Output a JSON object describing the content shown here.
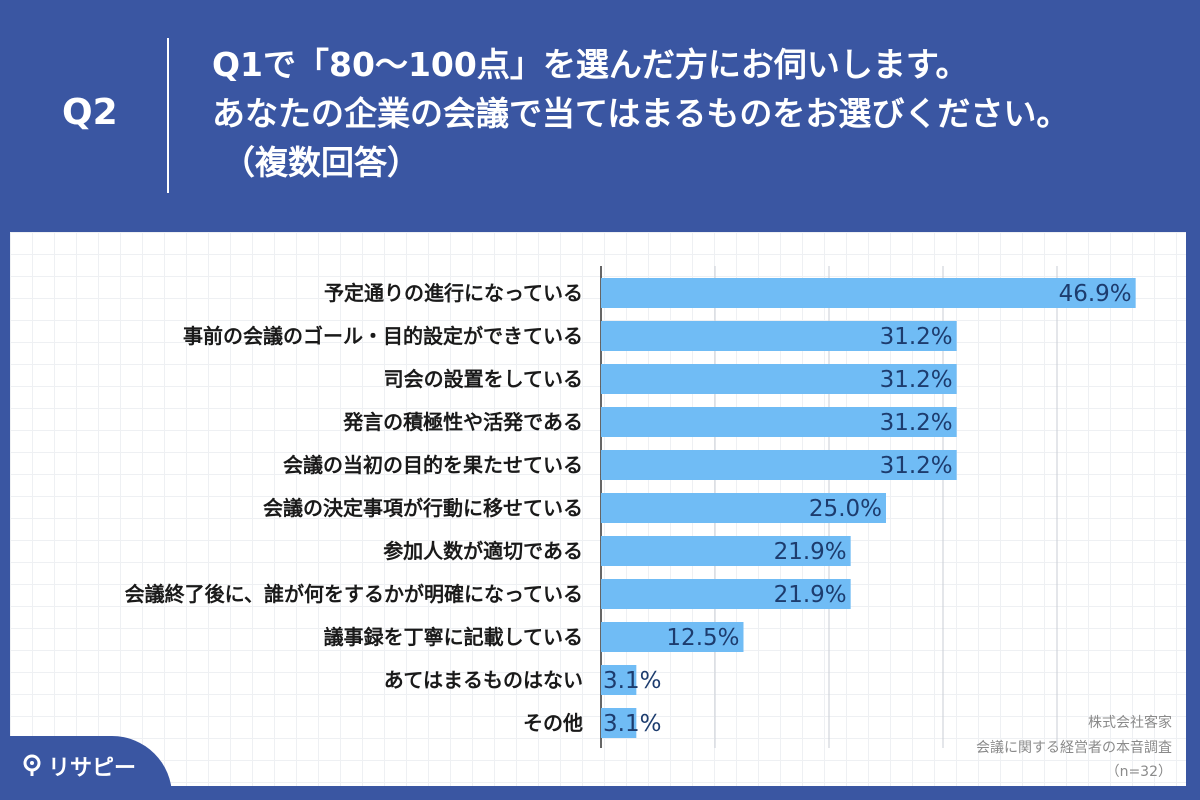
{
  "header": {
    "q_number": "Q2",
    "question_lines": [
      "Q1で「80〜100点」を選んだ方にお伺いします。",
      "あなたの企業の会議で当てはまるものをお選びください。",
      "（複数回答）"
    ]
  },
  "chart_data": {
    "type": "bar",
    "orientation": "horizontal",
    "categories": [
      "予定通りの進行になっている",
      "事前の会議のゴール・目的設定ができている",
      "司会の設置をしている",
      "発言の積極性や活発である",
      "会議の当初の目的を果たせている",
      "会議の決定事項が行動に移せている",
      "参加人数が適切である",
      "会議終了後に、誰が何をするかが明確になっている",
      "議事録を丁寧に記載している",
      "あてはまるものはない",
      "その他"
    ],
    "values": [
      46.9,
      31.2,
      31.2,
      31.2,
      31.2,
      25.0,
      21.9,
      21.9,
      12.5,
      3.1,
      3.1
    ],
    "value_labels": [
      "46.9%",
      "31.2%",
      "31.2%",
      "31.2%",
      "31.2%",
      "25.0%",
      "21.9%",
      "21.9%",
      "12.5%",
      "3.1%",
      "3.1%"
    ],
    "xlim": [
      0,
      50
    ],
    "grid": true,
    "bar_color": "#70bcf5"
  },
  "credits": {
    "company": "株式会社客家",
    "survey": "会議に関する経営者の本音調査",
    "sample": "（n=32）"
  },
  "logo": {
    "text": "リサピー",
    "icon": "pin-icon"
  },
  "colors": {
    "background": "#3a56a2",
    "value_text": "#1d3c6e"
  }
}
